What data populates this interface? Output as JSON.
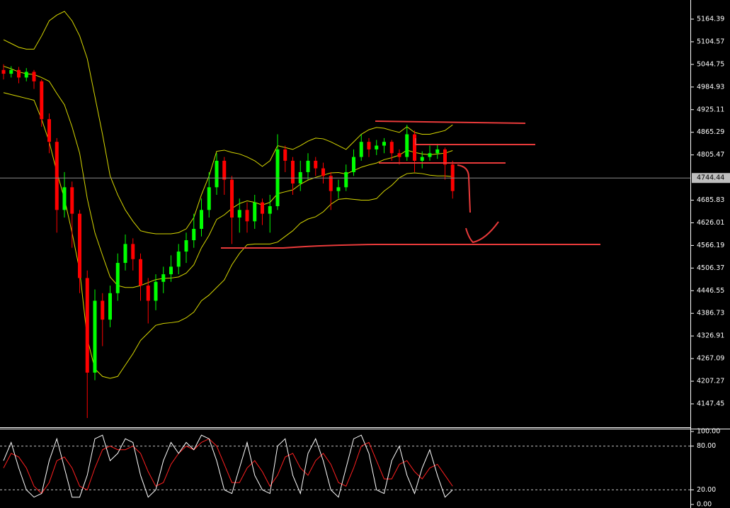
{
  "chart_data": [
    {
      "type": "candlestick",
      "ylim": [
        4085.65,
        5214.95
      ],
      "yticks": [
        5164.39,
        5104.57,
        5044.75,
        4984.93,
        4925.11,
        4865.29,
        4805.47,
        4685.83,
        4626.01,
        4566.19,
        4506.37,
        4446.55,
        4386.73,
        4326.91,
        4267.09,
        4207.27,
        4147.45
      ],
      "current_price": 4744.44,
      "up_color": "#00ff00",
      "down_color": "#ff0000",
      "band_color": "#d8d800",
      "candles": [
        [
          5030,
          5045,
          5005,
          5020
        ],
        [
          5020,
          5040,
          5010,
          5030
        ],
        [
          5030,
          5038,
          4995,
          5010
        ],
        [
          5010,
          5035,
          5000,
          5025
        ],
        [
          5025,
          5030,
          4980,
          5000
        ],
        [
          5000,
          5005,
          4880,
          4900
        ],
        [
          4900,
          4915,
          4810,
          4840
        ],
        [
          4840,
          4850,
          4600,
          4660
        ],
        [
          4660,
          4760,
          4640,
          4720
        ],
        [
          4720,
          4735,
          4560,
          4650
        ],
        [
          4650,
          4660,
          4440,
          4480
        ],
        [
          4480,
          4500,
          4110,
          4230
        ],
        [
          4230,
          4450,
          4210,
          4420
        ],
        [
          4420,
          4440,
          4300,
          4370
        ],
        [
          4370,
          4460,
          4350,
          4440
        ],
        [
          4440,
          4545,
          4420,
          4520
        ],
        [
          4520,
          4595,
          4500,
          4570
        ],
        [
          4570,
          4585,
          4500,
          4530
        ],
        [
          4530,
          4545,
          4420,
          4460
        ],
        [
          4460,
          4480,
          4360,
          4420
        ],
        [
          4420,
          4490,
          4395,
          4470
        ],
        [
          4470,
          4510,
          4440,
          4490
        ],
        [
          4490,
          4540,
          4470,
          4510
        ],
        [
          4510,
          4570,
          4490,
          4550
        ],
        [
          4550,
          4600,
          4520,
          4580
        ],
        [
          4580,
          4650,
          4560,
          4610
        ],
        [
          4610,
          4690,
          4590,
          4660
        ],
        [
          4660,
          4760,
          4640,
          4720
        ],
        [
          4720,
          4810,
          4700,
          4790
        ],
        [
          4790,
          4800,
          4700,
          4740
        ],
        [
          4740,
          4750,
          4570,
          4640
        ],
        [
          4640,
          4690,
          4600,
          4660
        ],
        [
          4660,
          4680,
          4600,
          4630
        ],
        [
          4630,
          4700,
          4610,
          4680
        ],
        [
          4680,
          4690,
          4620,
          4650
        ],
        [
          4650,
          4700,
          4600,
          4670
        ],
        [
          4670,
          4860,
          4660,
          4820
        ],
        [
          4820,
          4830,
          4760,
          4790
        ],
        [
          4790,
          4800,
          4700,
          4730
        ],
        [
          4730,
          4790,
          4710,
          4760
        ],
        [
          4760,
          4810,
          4740,
          4790
        ],
        [
          4790,
          4800,
          4750,
          4770
        ],
        [
          4770,
          4785,
          4730,
          4750
        ],
        [
          4750,
          4760,
          4660,
          4710
        ],
        [
          4710,
          4740,
          4690,
          4720
        ],
        [
          4720,
          4780,
          4710,
          4760
        ],
        [
          4760,
          4820,
          4750,
          4800
        ],
        [
          4800,
          4860,
          4790,
          4840
        ],
        [
          4840,
          4850,
          4800,
          4820
        ],
        [
          4820,
          4845,
          4805,
          4830
        ],
        [
          4830,
          4850,
          4810,
          4840
        ],
        [
          4840,
          4845,
          4790,
          4810
        ],
        [
          4810,
          4820,
          4780,
          4800
        ],
        [
          4800,
          4885,
          4790,
          4860
        ],
        [
          4860,
          4870,
          4760,
          4790
        ],
        [
          4790,
          4815,
          4770,
          4800
        ],
        [
          4800,
          4830,
          4790,
          4810
        ],
        [
          4810,
          4835,
          4795,
          4820
        ],
        [
          4820,
          4825,
          4740,
          4780
        ],
        [
          4780,
          4790,
          4690,
          4710
        ]
      ],
      "bands": {
        "upper": [
          5110,
          5100,
          5090,
          5085,
          5085,
          5120,
          5160,
          5175,
          5185,
          5160,
          5120,
          5060,
          4960,
          4860,
          4750,
          4700,
          4660,
          4630,
          4605,
          4600,
          4597,
          4597,
          4597,
          4600,
          4610,
          4640,
          4700,
          4750,
          4815,
          4818,
          4812,
          4808,
          4800,
          4790,
          4775,
          4790,
          4830,
          4825,
          4820,
          4830,
          4842,
          4850,
          4848,
          4840,
          4830,
          4820,
          4840,
          4860,
          4872,
          4878,
          4876,
          4870,
          4865,
          4880,
          4865,
          4860,
          4860,
          4865,
          4870,
          4885
        ],
        "middle": [
          5040,
          5033,
          5025,
          5020,
          5018,
          5010,
          5000,
          4968,
          4938,
          4880,
          4810,
          4690,
          4600,
          4540,
          4483,
          4460,
          4455,
          4455,
          4460,
          4468,
          4476,
          4479,
          4480,
          4483,
          4493,
          4515,
          4560,
          4593,
          4635,
          4647,
          4664,
          4677,
          4684,
          4680,
          4673,
          4680,
          4703,
          4708,
          4713,
          4728,
          4739,
          4746,
          4752,
          4758,
          4759,
          4755,
          4764,
          4773,
          4779,
          4784,
          4793,
          4798,
          4805,
          4818,
          4812,
          4808,
          4806,
          4808,
          4810,
          4817
        ],
        "lower": [
          4970,
          4965,
          4960,
          4955,
          4950,
          4900,
          4840,
          4760,
          4690,
          4600,
          4500,
          4320,
          4240,
          4220,
          4215,
          4220,
          4250,
          4280,
          4315,
          4335,
          4355,
          4360,
          4362,
          4365,
          4375,
          4390,
          4420,
          4435,
          4455,
          4475,
          4515,
          4545,
          4568,
          4570,
          4570,
          4570,
          4575,
          4590,
          4605,
          4625,
          4636,
          4642,
          4655,
          4675,
          4688,
          4690,
          4688,
          4686,
          4686,
          4690,
          4710,
          4725,
          4745,
          4756,
          4758,
          4756,
          4752,
          4750,
          4750,
          4748
        ]
      }
    },
    {
      "type": "line",
      "ylim": [
        0,
        100
      ],
      "yticks": [
        {
          "value": 100,
          "label": "100.00"
        },
        {
          "value": 80,
          "label": "80.00"
        },
        {
          "value": 20,
          "label": "20.00"
        },
        {
          "value": 0,
          "label": "0.00"
        }
      ],
      "levels": [
        80,
        20
      ],
      "series": [
        {
          "color": "#ffffff",
          "values": [
            60,
            85,
            50,
            20,
            10,
            15,
            60,
            90,
            50,
            10,
            10,
            40,
            90,
            95,
            60,
            70,
            90,
            85,
            40,
            10,
            20,
            60,
            85,
            70,
            85,
            75,
            95,
            90,
            60,
            20,
            15,
            50,
            85,
            40,
            20,
            15,
            80,
            90,
            40,
            15,
            70,
            90,
            60,
            20,
            10,
            50,
            90,
            95,
            70,
            20,
            15,
            60,
            80,
            40,
            15,
            50,
            75,
            40,
            10,
            20
          ]
        },
        {
          "color": "#ff2020",
          "values": [
            50,
            70,
            65,
            50,
            25,
            15,
            30,
            60,
            65,
            50,
            25,
            20,
            50,
            75,
            80,
            75,
            75,
            80,
            70,
            45,
            25,
            30,
            55,
            70,
            80,
            75,
            85,
            90,
            80,
            55,
            30,
            30,
            50,
            60,
            45,
            25,
            40,
            65,
            70,
            50,
            40,
            60,
            70,
            55,
            30,
            25,
            50,
            80,
            85,
            60,
            35,
            35,
            55,
            60,
            45,
            35,
            50,
            55,
            40,
            25
          ]
        }
      ]
    }
  ]
}
